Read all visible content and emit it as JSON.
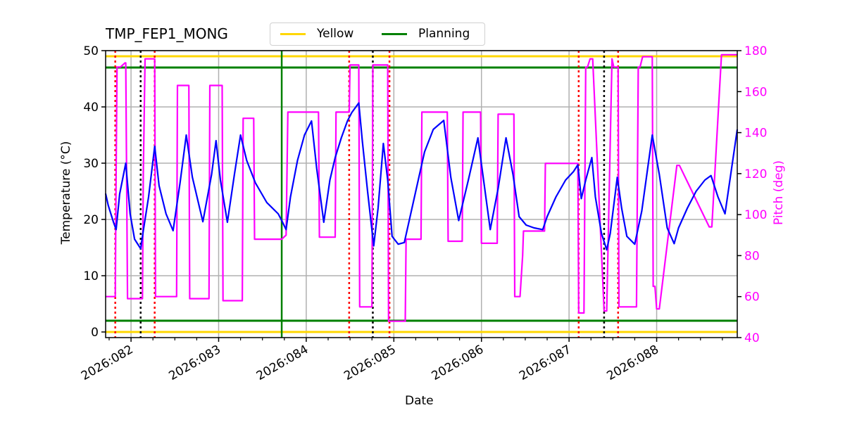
{
  "chart_data": {
    "type": "line",
    "title": "TMP_FEP1_MONG",
    "xlabel": "Date",
    "ylabel": "Temperature ($^\\circ$C)",
    "ylabel_display": "Temperature (°C)",
    "y2label": "Pitch (deg)",
    "ylim": [
      -1,
      50
    ],
    "y2lim": [
      40,
      180
    ],
    "xlim_day": [
      81.71,
      88.92
    ],
    "grid": true,
    "legend_position": "top-center-outside",
    "x_ticks": [
      "2026:082",
      "2026:083",
      "2026:084",
      "2026:085",
      "2026:086",
      "2026:087",
      "2026:088"
    ],
    "x_tick_days": [
      82,
      83,
      84,
      85,
      86,
      87,
      88
    ],
    "y_ticks": [
      0,
      10,
      20,
      30,
      40,
      50
    ],
    "y2_ticks": [
      40,
      60,
      80,
      100,
      120,
      140,
      160,
      180
    ],
    "legend": [
      {
        "label": "Yellow",
        "color": "#ffd700"
      },
      {
        "label": "Planning",
        "color": "#008000"
      }
    ],
    "limit_lines": [
      {
        "name": "Yellow",
        "values": [
          0,
          49
        ],
        "color": "#ffd700"
      },
      {
        "name": "Planning",
        "values": [
          2,
          47
        ],
        "color": "#008000"
      }
    ],
    "vertical_lines": {
      "green_solid_day": [
        83.72
      ],
      "red_dotted_days": [
        81.82,
        82.27,
        84.49,
        84.95,
        87.11,
        87.56
      ],
      "black_dotted_days": [
        82.11,
        84.76,
        87.4
      ]
    },
    "series": [
      {
        "name": "TMP_FEP1_MONG",
        "axis": "left",
        "color": "#0000ff",
        "x_day": [
          81.71,
          81.74,
          81.8,
          81.83,
          81.87,
          81.94,
          81.99,
          82.04,
          82.11,
          82.14,
          82.2,
          82.27,
          82.32,
          82.4,
          82.48,
          82.56,
          82.63,
          82.7,
          82.82,
          82.92,
          82.97,
          83.02,
          83.1,
          83.18,
          83.25,
          83.32,
          83.42,
          83.55,
          83.68,
          83.72,
          83.77,
          83.82,
          83.9,
          83.98,
          84.06,
          84.12,
          84.2,
          84.27,
          84.33,
          84.4,
          84.47,
          84.52,
          84.6,
          84.64,
          84.7,
          84.77,
          84.82,
          84.88,
          84.93,
          84.98,
          85.05,
          85.12,
          85.25,
          85.35,
          85.45,
          85.57,
          85.65,
          85.74,
          85.85,
          85.96,
          86.02,
          86.1,
          86.19,
          86.28,
          86.36,
          86.43,
          86.51,
          86.6,
          86.7,
          86.75,
          86.85,
          86.96,
          87.05,
          87.1,
          87.14,
          87.19,
          87.26,
          87.3,
          87.37,
          87.43,
          87.47,
          87.55,
          87.6,
          87.66,
          87.75,
          87.83,
          87.95,
          88.03,
          88.12,
          88.2,
          88.25,
          88.35,
          88.45,
          88.55,
          88.62,
          88.7,
          88.78,
          88.92
        ],
        "y": [
          24.6,
          22.5,
          19.5,
          18.2,
          24.5,
          30.0,
          21.0,
          16.5,
          14.8,
          18.0,
          24.0,
          33.0,
          26.0,
          21.0,
          18.0,
          26.5,
          35.0,
          27.5,
          19.6,
          28.0,
          34.0,
          27.0,
          19.5,
          28.0,
          35.0,
          30.5,
          26.5,
          23.0,
          21.0,
          19.8,
          18.2,
          24.0,
          30.5,
          35.0,
          37.5,
          29.0,
          19.5,
          27.0,
          31.0,
          34.5,
          37.5,
          39.0,
          40.7,
          34.0,
          25.0,
          15.3,
          22.0,
          33.5,
          27.0,
          17.0,
          15.6,
          15.9,
          25.0,
          32.0,
          36.0,
          37.6,
          27.5,
          19.8,
          27.0,
          34.5,
          27.5,
          18.2,
          25.5,
          34.5,
          28.0,
          20.5,
          19.0,
          18.5,
          18.2,
          20.5,
          24.0,
          27.0,
          28.5,
          29.7,
          23.7,
          27.0,
          31.0,
          24.0,
          17.5,
          14.6,
          17.5,
          27.5,
          22.0,
          17.0,
          15.6,
          21.5,
          35.0,
          28.0,
          18.5,
          15.7,
          18.5,
          22.0,
          25.0,
          27.0,
          27.8,
          24.0,
          21.0,
          36.0
        ]
      },
      {
        "name": "Pitch",
        "axis": "right",
        "color": "#ff00ff",
        "x_day": [
          81.71,
          81.82,
          81.83,
          81.84,
          81.88,
          81.93,
          81.94,
          81.96,
          82.13,
          82.14,
          82.16,
          82.27,
          82.28,
          82.3,
          82.52,
          82.53,
          82.55,
          82.66,
          82.67,
          82.7,
          82.89,
          82.9,
          82.92,
          83.04,
          83.05,
          83.07,
          83.27,
          83.28,
          83.3,
          83.4,
          83.41,
          83.43,
          83.72,
          83.77,
          83.79,
          83.85,
          83.86,
          83.88,
          84.14,
          84.15,
          84.17,
          84.33,
          84.34,
          84.36,
          84.49,
          84.5,
          84.53,
          84.6,
          84.61,
          84.63,
          84.75,
          84.76,
          84.78,
          84.93,
          84.94,
          84.96,
          85.13,
          85.14,
          85.16,
          85.31,
          85.32,
          85.34,
          85.61,
          85.62,
          85.64,
          85.78,
          85.79,
          85.81,
          85.99,
          86.0,
          86.02,
          86.18,
          86.19,
          86.21,
          86.37,
          86.38,
          86.4,
          86.44,
          86.47,
          86.48,
          86.72,
          86.73,
          86.75,
          87.1,
          87.11,
          87.13,
          87.17,
          87.19,
          87.21,
          87.24,
          87.25,
          87.27,
          87.4,
          87.41,
          87.43,
          87.49,
          87.51,
          87.56,
          87.57,
          87.59,
          87.77,
          87.79,
          87.81,
          87.84,
          87.95,
          87.96,
          87.98,
          88.0,
          88.01,
          88.03,
          88.23,
          88.24,
          88.26,
          88.6,
          88.61,
          88.63,
          88.74,
          88.75,
          88.77,
          88.92
        ],
        "y": [
          60,
          60,
          120,
          172,
          172,
          174,
          174,
          59,
          59,
          120,
          176,
          176,
          60,
          60,
          60,
          163,
          163,
          163,
          59,
          59,
          59,
          163,
          163,
          163,
          58,
          58,
          58,
          147,
          147,
          147,
          88,
          88,
          88,
          90,
          150,
          150,
          150,
          150,
          150,
          89,
          89,
          89,
          150,
          150,
          150,
          173,
          173,
          173,
          55,
          55,
          55,
          173,
          173,
          173,
          48,
          48,
          48,
          88,
          88,
          88,
          150,
          150,
          150,
          87,
          87,
          87,
          150,
          150,
          150,
          86,
          86,
          86,
          149,
          149,
          149,
          60,
          60,
          60,
          80,
          92,
          92,
          125,
          125,
          125,
          52,
          52,
          52,
          172,
          172,
          176,
          176,
          176,
          53,
          53,
          53,
          176,
          172,
          172,
          55,
          55,
          55,
          172,
          172,
          177,
          177,
          65,
          65,
          54,
          54,
          54,
          124,
          124,
          124,
          94,
          94,
          94,
          178,
          178,
          178,
          178
        ]
      }
    ]
  }
}
